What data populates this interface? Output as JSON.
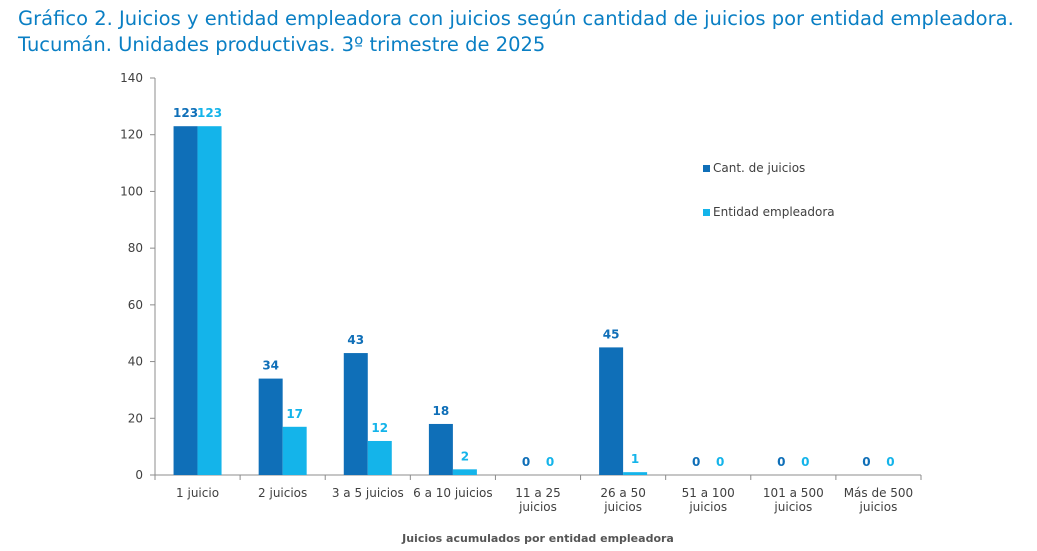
{
  "title_line1": "Gráfico 2. Juicios y entidad empleadora con juicios según cantidad de juicios por entidad empleadora.",
  "title_line2": "Tucumán. Unidades productivas. 3º trimestre de 2025",
  "chart_data": {
    "type": "bar",
    "xlabel": "Juicios acumulados por entidad empleadora",
    "ylabel": "",
    "ylim": [
      0,
      140
    ],
    "yticks": [
      0,
      20,
      40,
      60,
      80,
      100,
      120,
      140
    ],
    "grid": false,
    "legend_position": "right",
    "categories": [
      [
        "1 juicio"
      ],
      [
        "2 juicios"
      ],
      [
        "3 a 5 juicios"
      ],
      [
        "6 a 10 juicios"
      ],
      [
        "11 a 25",
        "juicios"
      ],
      [
        "26 a 50",
        "juicios"
      ],
      [
        "51 a 100",
        "juicios"
      ],
      [
        "101 a 500",
        "juicios"
      ],
      [
        "Más de 500",
        "juicios"
      ]
    ],
    "series": [
      {
        "name": "Cant. de juicios",
        "color": "#0f6fb8",
        "values": [
          123,
          34,
          43,
          18,
          0,
          45,
          0,
          0,
          0
        ]
      },
      {
        "name": "Entidad empleadora",
        "color": "#14b4ea",
        "values": [
          123,
          17,
          12,
          2,
          0,
          1,
          0,
          0,
          0
        ]
      }
    ]
  }
}
